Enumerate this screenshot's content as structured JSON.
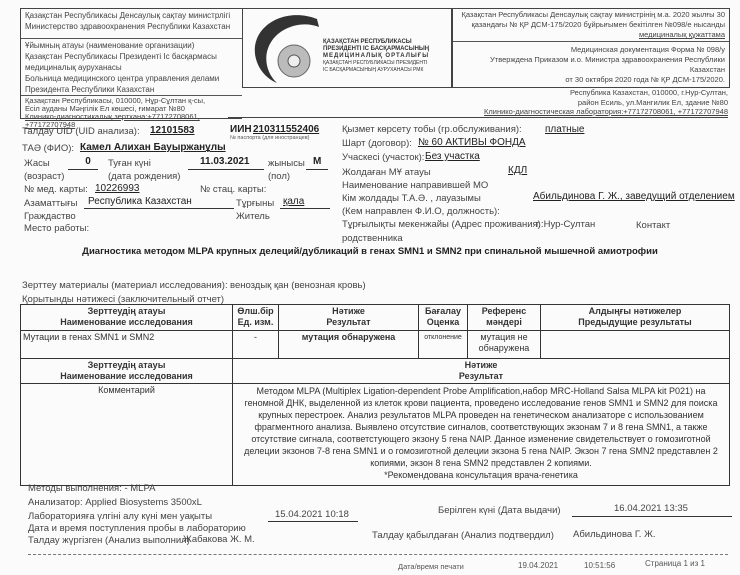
{
  "header": {
    "ministry_kz": "Қазақстан Республикасы Денсаулық сақтау министрлігі",
    "ministry_ru": "Министерство здравоохранения  Республики Казахстан",
    "org_label": "Ұйымның атауы (наименование организации)",
    "org_kz_1": "Қазақстан Республикасы Президенті Іс басқармасы",
    "org_kz_2": "медициналық ауруханасы",
    "org_ru_1": "Больница медицинского центра управления делами",
    "org_ru_2": "Президента Республики Казахстан",
    "addr_kz_1": "Қазақстан Республикасы, 010000, Нұр-Сұлтан қ-сы,",
    "addr_kz_2": "Есіл ауданы Мәңгілік Ел көшесі, ғимарат  №80",
    "addr_kz_3": "Клинико-диагностикалық зертхана:+77172708061, +77172707948",
    "logo_text": [
      "ҚАЗАҚСТАН РЕСПУБЛИКАСЫ",
      "ПРЕЗИДЕНТІ ІС БАСҚАРМАСЫНЫҢ",
      "МЕДИЦИНАЛЫҚ ОРТАЛЫҒЫ",
      "ҚАЗАҚСТАН РЕСПУБЛИКАСЫ ПРЕЗИДЕНТІ",
      "ІС БАСҚАРМАСЫНЫҢ АУРУХАНАСЫ РМК"
    ],
    "form_kz_1": "Қазақстан Республикасы Денсаулық сақтау министрінің м.а. 2020 жылғы 30",
    "form_kz_2": "қазандағы № ҚР ДСМ-175/2020 бұйрығымен бекітілген  №098/е нысанды",
    "form_kz_3": "медициналық құжаттама",
    "form_ru_1": "Медицинская документация Форма №  098/у",
    "form_ru_2": "Утверждена Приказом и.о. Министра здравоохранения Республики Казахстан",
    "form_ru_3": "от 30 октября 2020 года № ҚР ДСМ-175/2020.",
    "addr_ru_1": "Республика Казахстан, 010000, г.Нур-Султан,",
    "addr_ru_2": "район Есиль, ул.Мангилик Ел, здание №80",
    "addr_ru_3": "Клинико-диагностическая лаборатория:+77172708061, +77172707948"
  },
  "patient": {
    "uid_label": "Талдау UID (UID анализа):",
    "uid": "12101583",
    "iin_label": "ИИН",
    "iin": "210311552406",
    "passport_label": "№ паспорта (для иностранцев)",
    "fio_label": "ТАӘ (ФИО):",
    "fio": "Камел Алихан Бауыржанұлы",
    "age_label_1": "Жасы",
    "age_label_2": "(возраст)",
    "age": "0",
    "dob_label_1": "Туған күні",
    "dob_label_2": "(дата рождения)",
    "dob": "11.03.2021",
    "sex_label_1": "жынысы",
    "sex_label_2": "(пол)",
    "sex": "М",
    "medcard_label": "№ мед. карты:",
    "medcard": "10226993",
    "stac_label": "№ стац. карты:",
    "citizen_label_1": "Азаматтығы",
    "citizen_label_2": "Граждаство",
    "citizen": "Республика Казахстан",
    "resident_label_1": "Тұрғыны",
    "resident_label_2": "Житель",
    "resident": "қала",
    "work_label": "Место работы:"
  },
  "service": {
    "group_label": "Қызмет көрсету тобы (гр.обслуживания):",
    "group": "платные",
    "contract_label": "Шарт (договор):",
    "contract": "№ 60 АКТИВЫ ФОНДА",
    "area_label": "Учаскесі (участок):",
    "area": "Без участка",
    "mo_label_1": "Жолдаған МҰ атауы",
    "mo_label_2": "Наименование направившей МО",
    "mo": "КДЛ",
    "ref_label_1": "Кім жолдады Т.А.Ә. , лауазымы",
    "ref_label_2": "(Кем направлен Ф.И.О, должность):",
    "ref": "Абильдинова Г. Ж., заведущий отделением",
    "address_label": "Тұрғылықты мекенжайы (Адрес проживания):",
    "address": "г. Нур-Султан",
    "contact_label_1": "Контакт",
    "contact_label_2": "родственника"
  },
  "title": "Диагностика методом MLPA крупных делеций/дубликаций в генах SMN1 и SMN2 при спинальной мышечной амиотрофии",
  "material_label": "Зерттеу материалы (материал исследования):",
  "material": "веноздық қан (венозная кровь)",
  "report_label": "Қорытынды нәтижесі (заключительный отчет)",
  "table1": {
    "headers": [
      [
        "Зерттеудің атауы",
        "Наименование исследования"
      ],
      [
        "Өлш.бір",
        "Ед. изм."
      ],
      [
        "Нәтиже",
        "Результат"
      ],
      [
        "Бағалау",
        "Оценка"
      ],
      [
        "Референс",
        "мәндері"
      ],
      [
        "Алдыңғы нәтижелер",
        "Предыдущие результаты"
      ]
    ],
    "row": [
      "Мутации в генах SMN1 и SMN2",
      "-",
      "мутация обнаружена",
      "отклонение",
      "мутация не обнаружена",
      ""
    ]
  },
  "table2": {
    "headers": [
      [
        "Зерттеудің атауы",
        "Наименование исследования"
      ],
      [
        "Нәтиже",
        "Результат"
      ]
    ],
    "row_label": "Комментарий",
    "comment": "Методом MLPA (Multiplex Ligation-dependent Probe Amplification,набор MRC-Holland Salsa MLPA kit P021) на геномной ДНК, выделенной из клеток крови пациента, проведено исследование генов SMN1 и SMN2 для поиска крупных перестроек. Анализ результатов MLPA проведен на генетическом анализаторе с использованием фрагментного анализа. Выявлено отсутствие сигналов, соответствующих экзонам 7 и 8 гена SMN1, а также отсутствие сигнала, соответстующего экзону 5 гена NAIP. Данное изменение свидетельствует о гомозиготной делеции экзонов 7-8 гена SMN1 и о гомозиготной делеции экзона 5 гена NAIP. Экзон 7 гена SMN2 представлен 2 копиями, экзон 8 гена SMN2 представлен 2 копиями.",
    "recommendation": "*Рекомендована консультация врача-генетика"
  },
  "footer": {
    "methods": "Методы выполнения:  - MLPA",
    "analyzer": "Анализатор: Applied Biosystems 3500xL",
    "received_label_1": "Лабораторияға үлгіні алу күні мен уақыты",
    "received_label_2": "Дата и время поступления пробы в лабораторию",
    "received": "15.04.2021 10:18",
    "issued_label": "Берілген күні (Дата выдачи)",
    "issued": "16.04.2021 13:35",
    "performed_label": "Талдау жүргізген (Анализ выполнил)",
    "performed": "Жабакова Ж. М.",
    "confirmed_label": "Талдау қабылдаған (Анализ подтвердил)",
    "confirmed": "Абильдинова Г. Ж.",
    "print_label": "Дата/время печати",
    "print_date": "19.04.2021",
    "print_time": "10:51:56",
    "page": "Страница 1 из 1"
  }
}
